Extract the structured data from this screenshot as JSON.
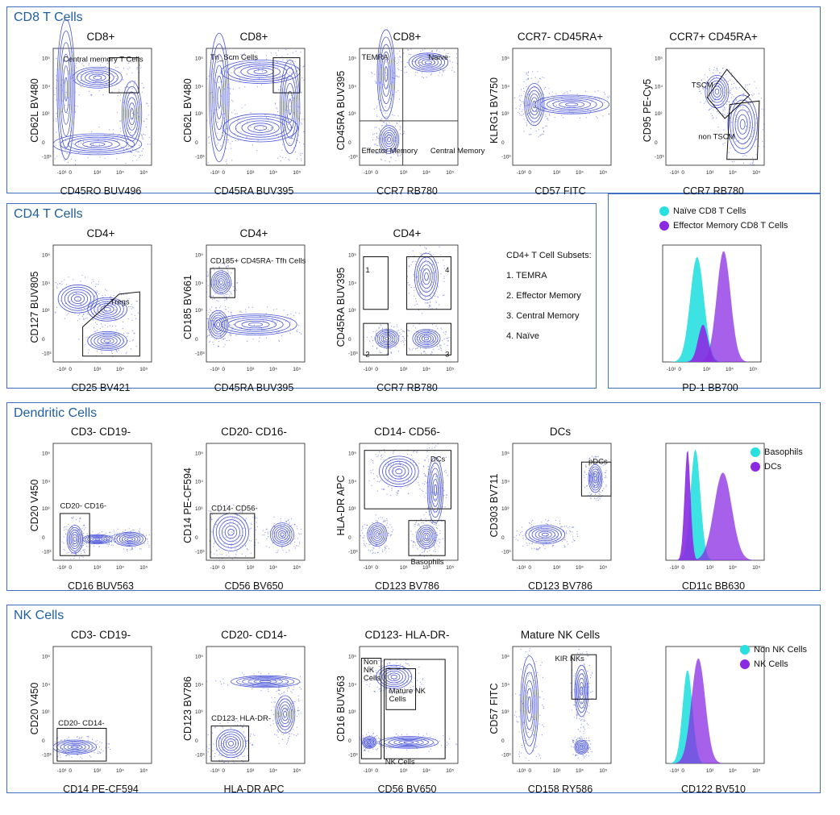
{
  "colors": {
    "contour": "#4a55d8",
    "border": "#3f6fbf",
    "title": "#1f5fa0",
    "cyan": "#28e0e0",
    "purple": "#8a2be2"
  },
  "sections": {
    "cd8": "CD8 T Cells",
    "cd4": "CD4 T Cells",
    "dc": "Dendritic Cells",
    "nk": "NK Cells"
  },
  "cd4_subsets": {
    "title": "CD4+ T Cell Subsets:",
    "items": [
      "1. TEMRA",
      "2. Effector Memory",
      "3. Central Memory",
      "4. Naïve"
    ]
  },
  "legend_pd1": {
    "a": "Naïve CD8 T Cells",
    "b": "Effector Memory CD8 T Cells"
  },
  "legend_cd11c": {
    "a": "Basophils",
    "b": "DCs"
  },
  "legend_cd122": {
    "a": "Non NK Cells",
    "b": "NK Cells"
  },
  "chart_data": [
    {
      "type": "contour",
      "title": "CD8+",
      "xlabel": "CD45RO BUV496",
      "ylabel": "CD62L BV480",
      "gates": [
        "Central memory T Cells"
      ]
    },
    {
      "type": "contour",
      "title": "CD8+",
      "xlabel": "CD45RA BUV395",
      "ylabel": "CD62L BV480",
      "gates": [
        "Tn_Scm Cells"
      ]
    },
    {
      "type": "contour",
      "title": "CD8+",
      "xlabel": "CCR7 RB780",
      "ylabel": "CD45RA BUV395",
      "gates": [
        "TEMRA",
        "Naïve",
        "Effector Memory",
        "Central Memory"
      ]
    },
    {
      "type": "contour",
      "title": "CCR7- CD45RA+",
      "xlabel": "CD57 FITC",
      "ylabel": "KLRG1 BV750",
      "gates": []
    },
    {
      "type": "contour",
      "title": "CCR7+ CD45RA+",
      "xlabel": "CCR7 RB780",
      "ylabel": "CD95 PE-Cy5",
      "gates": [
        "TSCM",
        "non TSCM"
      ]
    },
    {
      "type": "contour",
      "title": "CD4+",
      "xlabel": "CD25 BV421",
      "ylabel": "CD127 BUV805",
      "gates": [
        "Tregs"
      ]
    },
    {
      "type": "contour",
      "title": "CD4+",
      "xlabel": "CD45RA BUV395",
      "ylabel": "CD185 BV661",
      "gates": [
        "CD185+ CD45RA- Tfh Cells"
      ]
    },
    {
      "type": "contour",
      "title": "CD4+",
      "xlabel": "CCR7 RB780",
      "ylabel": "CD45RA BUV395",
      "gates": [
        "1",
        "2",
        "3",
        "4"
      ]
    },
    {
      "type": "histogram",
      "title": "",
      "xlabel": "PD-1 BB700",
      "ylabel": "",
      "series": [
        "Naïve CD8 T Cells",
        "Effector Memory CD8 T Cells"
      ]
    },
    {
      "type": "contour",
      "title": "CD3- CD19-",
      "xlabel": "CD16 BUV563",
      "ylabel": "CD20 V450",
      "gates": [
        "CD20- CD16-"
      ]
    },
    {
      "type": "contour",
      "title": "CD20- CD16-",
      "xlabel": "CD56 BV650",
      "ylabel": "CD14 PE-CF594",
      "gates": [
        "CD14- CD56-"
      ]
    },
    {
      "type": "contour",
      "title": "CD14- CD56-",
      "xlabel": "CD123 BV786",
      "ylabel": "HLA-DR APC",
      "gates": [
        "DCs",
        "Basophils"
      ]
    },
    {
      "type": "contour",
      "title": "DCs",
      "xlabel": "CD123 BV786",
      "ylabel": "CD303 BV711",
      "gates": [
        "pDCs"
      ]
    },
    {
      "type": "histogram",
      "title": "",
      "xlabel": "CD11c BB630",
      "ylabel": "",
      "series": [
        "Basophils",
        "DCs"
      ]
    },
    {
      "type": "contour",
      "title": "CD3- CD19-",
      "xlabel": "CD14 PE-CF594",
      "ylabel": "CD20 V450",
      "gates": [
        "CD20- CD14-"
      ]
    },
    {
      "type": "contour",
      "title": "CD20- CD14-",
      "xlabel": "HLA-DR APC",
      "ylabel": "CD123 BV786",
      "gates": [
        "CD123- HLA-DR-"
      ]
    },
    {
      "type": "contour",
      "title": "CD123- HLA-DR-",
      "xlabel": "CD56 BV650",
      "ylabel": "CD16 BUV563",
      "gates": [
        "Non NK Cells",
        "Mature NK Cells",
        "NK Cells"
      ]
    },
    {
      "type": "contour",
      "title": "Mature NK Cells",
      "xlabel": "CD158 RY586",
      "ylabel": "CD57 FITC",
      "gates": [
        "KIR NKs"
      ]
    },
    {
      "type": "histogram",
      "title": "",
      "xlabel": "CD122 BV510",
      "ylabel": "",
      "series": [
        "Non NK Cells",
        "NK Cells"
      ]
    }
  ]
}
